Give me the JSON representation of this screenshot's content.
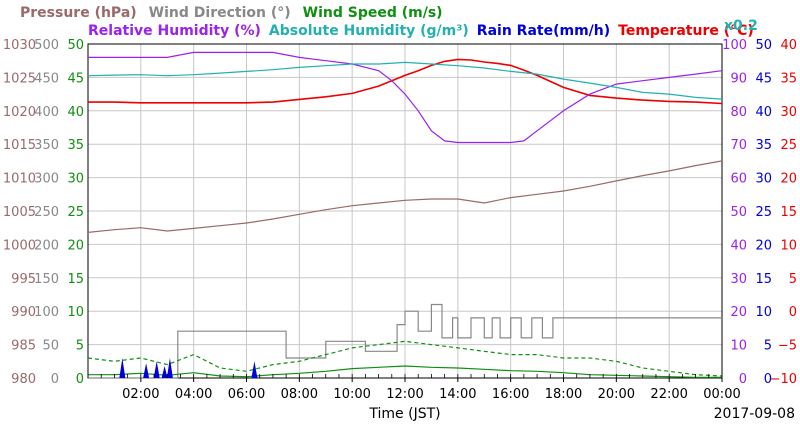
{
  "chart_data": {
    "type": "line",
    "date": "2017-09-08",
    "xlabel": "Time (JST)",
    "x_ticks": [
      "02:00",
      "04:00",
      "06:00",
      "08:00",
      "10:00",
      "12:00",
      "14:00",
      "16:00",
      "18:00",
      "20:00",
      "22:00",
      "00:00"
    ],
    "grid": true,
    "legend_row1": [
      {
        "name": "Pressure (hPa)",
        "color": "#9a6a6a"
      },
      {
        "name": "Wind Direction (°)",
        "color": "#888888"
      },
      {
        "name": "Wind Speed (m/s)",
        "color": "#109010"
      }
    ],
    "legend_row2": [
      {
        "name": "Relative Humidity (%)",
        "color": "#9922ee"
      },
      {
        "name": "Absolute Humidity (g/m³)",
        "color": "#22b0b0"
      },
      {
        "name": "Rain Rate(mm/h)",
        "color": "#0000dd"
      },
      {
        "name": "Temperature (°C)",
        "color": "#ee0000"
      }
    ],
    "abs_humidity_scale": "x0.2",
    "axes": {
      "pressure": {
        "ticks": [
          "1030",
          "1025",
          "1020",
          "1015",
          "1010",
          "1005",
          "1000",
          "995",
          "990",
          "985",
          "980"
        ],
        "ylim": [
          980,
          1030
        ],
        "color": "#9a6a6a"
      },
      "wind_direction": {
        "ticks": [
          "500",
          "450",
          "400",
          "350",
          "300",
          "250",
          "200",
          "150",
          "100",
          "50",
          "0"
        ],
        "ylim": [
          0,
          500
        ],
        "color": "#888888"
      },
      "wind_speed": {
        "ticks": [
          "50",
          "45",
          "40",
          "35",
          "30",
          "25",
          "20",
          "15",
          "10",
          "5",
          "0"
        ],
        "ylim": [
          0,
          50
        ],
        "color": "#109010"
      },
      "humidity": {
        "ticks": [
          "100",
          "90",
          "80",
          "70",
          "60",
          "50",
          "40",
          "30",
          "20",
          "10",
          "0"
        ],
        "ylim": [
          0,
          100
        ],
        "color": "#9922ee"
      },
      "rain_rate": {
        "ticks": [
          "50",
          "45",
          "40",
          "35",
          "30",
          "25",
          "20",
          "15",
          "10",
          "5",
          "0"
        ],
        "ylim": [
          0,
          50
        ],
        "color": "#0000dd"
      },
      "temperature": {
        "ticks": [
          "40",
          "35",
          "30",
          "25",
          "20",
          "15",
          "10",
          "5",
          "0",
          "−5",
          "−10"
        ],
        "ylim": [
          -10,
          40
        ],
        "color": "#ee0000"
      }
    },
    "series": [
      {
        "key": "pressure",
        "color": "#9a6a6a",
        "x": [
          0,
          1,
          2,
          3,
          4,
          5,
          6,
          7,
          8,
          9,
          10,
          11,
          12,
          13,
          14,
          15,
          16,
          17,
          18,
          19,
          20,
          21,
          22,
          23,
          24
        ],
        "values": [
          1001.8,
          1002.2,
          1002.5,
          1002.0,
          1002.4,
          1002.8,
          1003.2,
          1003.8,
          1004.5,
          1005.2,
          1005.8,
          1006.2,
          1006.6,
          1006.8,
          1006.8,
          1006.2,
          1007.0,
          1007.5,
          1008.0,
          1008.7,
          1009.5,
          1010.3,
          1011.0,
          1011.8,
          1012.5
        ]
      },
      {
        "key": "temperature",
        "color": "#ee0000",
        "x": [
          0,
          1,
          2,
          3,
          4,
          5,
          6,
          7,
          8,
          9,
          10,
          11,
          12,
          12.5,
          13,
          13.5,
          14,
          14.5,
          15,
          15.5,
          16,
          16.5,
          17,
          17.5,
          18,
          19,
          20,
          21,
          22,
          23,
          24
        ],
        "values": [
          31.3,
          31.3,
          31.2,
          31.2,
          31.2,
          31.2,
          31.2,
          31.3,
          31.7,
          32.1,
          32.6,
          33.7,
          35.3,
          36.0,
          36.8,
          37.4,
          37.7,
          37.6,
          37.3,
          37.1,
          36.8,
          36.1,
          35.3,
          34.4,
          33.5,
          32.3,
          31.9,
          31.6,
          31.4,
          31.3,
          31.1
        ]
      },
      {
        "key": "humidity",
        "color": "#9922ee",
        "x": [
          0,
          1,
          2,
          3,
          4,
          5,
          6,
          7,
          8,
          9,
          10,
          11,
          11.5,
          12,
          12.5,
          13,
          13.5,
          14,
          14.5,
          15,
          15.5,
          16,
          16.5,
          17,
          17.5,
          18,
          19,
          20,
          21,
          22,
          23,
          24
        ],
        "values": [
          96,
          96,
          96,
          96,
          97.5,
          97.5,
          97.5,
          97.5,
          96,
          95,
          94,
          92,
          89,
          85,
          80,
          74,
          71,
          70.5,
          70.5,
          70.5,
          70.5,
          70.5,
          71,
          74,
          77,
          80,
          85,
          88,
          89,
          90,
          91,
          92
        ]
      },
      {
        "key": "abs_humidity",
        "color": "#22b0b0",
        "x": [
          0,
          1,
          2,
          3,
          4,
          5,
          6,
          7,
          8,
          9,
          10,
          11,
          12,
          13,
          14,
          15,
          16,
          17,
          18,
          19,
          20,
          21,
          22,
          23,
          24
        ],
        "values": [
          90.5,
          90.7,
          90.8,
          90.5,
          90.8,
          91.3,
          91.8,
          92.3,
          93,
          93.5,
          94,
          94,
          94.5,
          94,
          93.5,
          92.8,
          91.8,
          91.0,
          89.5,
          88.3,
          87.0,
          85.5,
          85.0,
          84.0,
          83.5
        ]
      },
      {
        "key": "wind_direction",
        "color": "#888888",
        "step": true,
        "x": [
          0,
          3.4,
          3.4,
          7.5,
          7.5,
          9,
          9,
          10.5,
          10.5,
          11.7,
          11.7,
          12,
          12,
          12.5,
          12.5,
          13,
          13,
          13.4,
          13.4,
          13.8,
          13.8,
          14,
          14,
          14.5,
          14.5,
          15,
          15,
          15.3,
          15.3,
          15.6,
          15.6,
          16,
          16,
          16.4,
          16.4,
          16.8,
          16.8,
          17.2,
          17.2,
          17.6,
          17.6,
          17.9,
          17.9,
          24
        ],
        "values": [
          0,
          0,
          70,
          70,
          30,
          30,
          55,
          55,
          40,
          40,
          80,
          80,
          100,
          100,
          70,
          70,
          110,
          110,
          60,
          60,
          90,
          90,
          60,
          60,
          90,
          90,
          60,
          60,
          90,
          90,
          60,
          60,
          90,
          90,
          60,
          60,
          90,
          90,
          60,
          60,
          90,
          90,
          90,
          90
        ]
      },
      {
        "key": "wind_speed_max",
        "color": "#109010",
        "dashed": true,
        "x": [
          0,
          1,
          2,
          3,
          4,
          5,
          6,
          7,
          8,
          9,
          10,
          11,
          12,
          13,
          14,
          15,
          16,
          17,
          18,
          19,
          20,
          21,
          22,
          23,
          24
        ],
        "values": [
          3,
          2.5,
          3,
          2,
          3.5,
          1.5,
          1,
          2,
          2.5,
          3.5,
          4.5,
          5,
          5.5,
          5,
          4.5,
          4,
          3.5,
          3.5,
          3,
          3,
          2.5,
          1.5,
          1,
          0.5,
          0.3
        ]
      },
      {
        "key": "wind_speed_avg",
        "color": "#109010",
        "x": [
          0,
          1,
          2,
          3,
          4,
          5,
          6,
          7,
          8,
          9,
          10,
          11,
          12,
          13,
          14,
          15,
          16,
          17,
          18,
          19,
          20,
          21,
          22,
          23,
          24
        ],
        "values": [
          0.5,
          0.5,
          0.7,
          0.4,
          0.8,
          0.3,
          0.2,
          0.5,
          0.7,
          1,
          1.4,
          1.6,
          1.8,
          1.6,
          1.5,
          1.3,
          1.1,
          1,
          0.8,
          0.5,
          0.4,
          0.3,
          0.2,
          0.1,
          0.1
        ]
      },
      {
        "key": "rain_rate",
        "color": "#0000dd",
        "bars": true,
        "x": [
          1.3,
          2.2,
          2.6,
          2.9,
          3.1,
          6.3
        ],
        "values": [
          3,
          2.2,
          2.5,
          1.8,
          3,
          2.5
        ]
      }
    ]
  }
}
